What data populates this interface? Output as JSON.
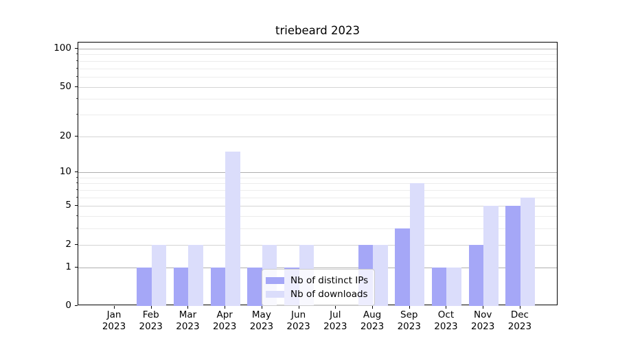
{
  "figure": {
    "title": "triebeard 2023"
  },
  "chart_data": {
    "type": "bar",
    "title": "triebeard 2023",
    "categories": [
      {
        "month": "Jan",
        "year": "2023"
      },
      {
        "month": "Feb",
        "year": "2023"
      },
      {
        "month": "Mar",
        "year": "2023"
      },
      {
        "month": "Apr",
        "year": "2023"
      },
      {
        "month": "May",
        "year": "2023"
      },
      {
        "month": "Jun",
        "year": "2023"
      },
      {
        "month": "Jul",
        "year": "2023"
      },
      {
        "month": "Aug",
        "year": "2023"
      },
      {
        "month": "Sep",
        "year": "2023"
      },
      {
        "month": "Oct",
        "year": "2023"
      },
      {
        "month": "Nov",
        "year": "2023"
      },
      {
        "month": "Dec",
        "year": "2023"
      }
    ],
    "series": [
      {
        "name": "Nb of distinct IPs",
        "color": "#a5a7f7",
        "values": [
          0,
          1,
          1,
          1,
          1,
          1,
          0,
          2,
          3,
          1,
          2,
          5
        ]
      },
      {
        "name": "Nb of downloads",
        "color": "#dbddfb",
        "values": [
          0,
          2,
          2,
          15,
          2,
          2,
          0,
          2,
          8,
          1,
          5,
          6
        ]
      }
    ],
    "xlabel": "",
    "ylabel": "",
    "yscale": "log1p",
    "ylim": [
      0,
      100
    ],
    "yticks": [
      100,
      50,
      20,
      10,
      5,
      2,
      1,
      0
    ],
    "minor_yticks": [
      3,
      4,
      6,
      7,
      8,
      9,
      30,
      40,
      60,
      70,
      80,
      90
    ],
    "decade_ticks": [
      1,
      10,
      100
    ],
    "grid": true,
    "legend_position": "lower center"
  },
  "colors": {
    "bar_distinct_ips": "#a5a7f7",
    "bar_downloads": "#dbddfb",
    "decade_grid": "#aeaeae",
    "major_grid": "#d4d4d4",
    "minor_grid": "#ececec",
    "axis": "#000000",
    "background": "#ffffff"
  }
}
